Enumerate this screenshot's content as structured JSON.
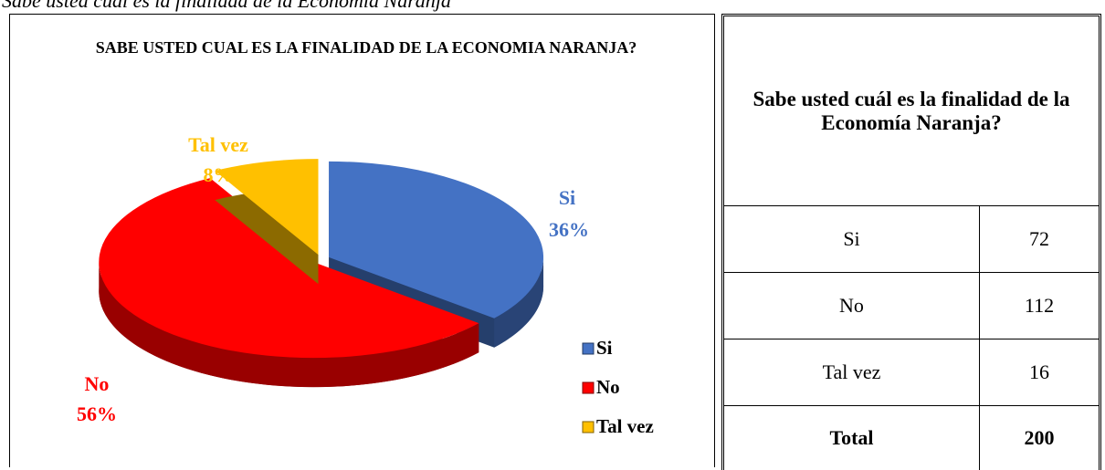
{
  "caption": "Sabe usted cuál es la finalidad de la Economía Naranja",
  "chart_data": {
    "type": "pie",
    "title": "SABE USTED CUAL ES LA FINALIDAD DE LA ECONOMIA NARANJA?",
    "categories": [
      "Si",
      "No",
      "Tal vez"
    ],
    "values": [
      36,
      56,
      8
    ],
    "value_labels": [
      "36%",
      "56%",
      "8%"
    ],
    "colors": [
      "#4472c4",
      "#ff0000",
      "#ffc000"
    ],
    "legend": "right"
  },
  "table": {
    "header": "Sabe usted cuál es la finalidad de la Economía Naranja?",
    "rows": [
      [
        "Si",
        72
      ],
      [
        "No",
        112
      ],
      [
        "Tal vez",
        16
      ]
    ],
    "total": [
      "Total",
      200
    ]
  }
}
